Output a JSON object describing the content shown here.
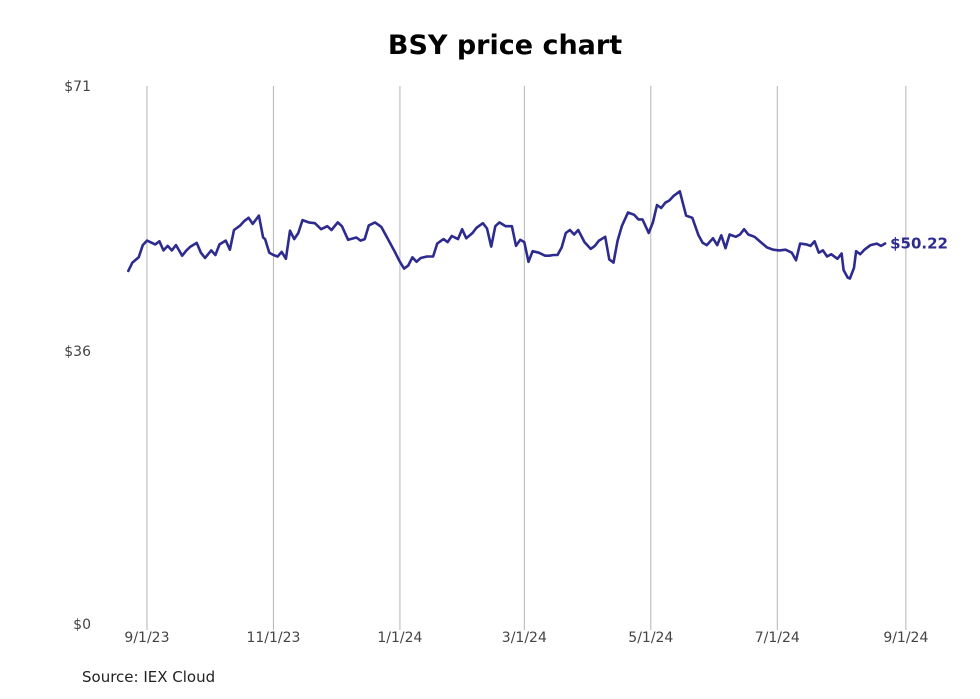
{
  "chart_data": {
    "type": "line",
    "title": "BSY price chart",
    "source": "Source: IEX Cloud",
    "ylim": [
      0,
      71
    ],
    "y_ticks": [
      {
        "value": 71,
        "label": "$71"
      },
      {
        "value": 36,
        "label": "$36"
      },
      {
        "value": 0,
        "label": "$0"
      }
    ],
    "x_range": [
      "2023-08-19",
      "2024-09-03"
    ],
    "x_ticks": [
      {
        "date": "2023-09-01",
        "label": "9/1/23"
      },
      {
        "date": "2023-11-01",
        "label": "11/1/23"
      },
      {
        "date": "2024-01-01",
        "label": "1/1/24"
      },
      {
        "date": "2024-03-01",
        "label": "3/1/24"
      },
      {
        "date": "2024-05-01",
        "label": "5/1/24"
      },
      {
        "date": "2024-07-01",
        "label": "7/1/24"
      },
      {
        "date": "2024-09-01",
        "label": "9/1/24"
      }
    ],
    "grid": "vertical",
    "series": [
      {
        "color": "#2e2b8f",
        "last_label": "$50.22",
        "points": [
          [
            "2023-08-23",
            46.6
          ],
          [
            "2023-08-25",
            47.7
          ],
          [
            "2023-08-28",
            48.4
          ],
          [
            "2023-08-30",
            50.0
          ],
          [
            "2023-09-01",
            50.6
          ],
          [
            "2023-09-05",
            50.1
          ],
          [
            "2023-09-07",
            50.5
          ],
          [
            "2023-09-09",
            49.3
          ],
          [
            "2023-09-11",
            49.9
          ],
          [
            "2023-09-13",
            49.3
          ],
          [
            "2023-09-15",
            50.0
          ],
          [
            "2023-09-18",
            48.6
          ],
          [
            "2023-09-20",
            49.3
          ],
          [
            "2023-09-22",
            49.8
          ],
          [
            "2023-09-25",
            50.3
          ],
          [
            "2023-09-27",
            49.0
          ],
          [
            "2023-09-29",
            48.3
          ],
          [
            "2023-10-02",
            49.3
          ],
          [
            "2023-10-04",
            48.7
          ],
          [
            "2023-10-06",
            50.1
          ],
          [
            "2023-10-09",
            50.6
          ],
          [
            "2023-10-11",
            49.4
          ],
          [
            "2023-10-13",
            52.0
          ],
          [
            "2023-10-16",
            52.6
          ],
          [
            "2023-10-18",
            53.2
          ],
          [
            "2023-10-20",
            53.6
          ],
          [
            "2023-10-22",
            52.8
          ],
          [
            "2023-10-25",
            53.9
          ],
          [
            "2023-10-27",
            51.0
          ],
          [
            "2023-10-28",
            50.8
          ],
          [
            "2023-10-30",
            49.0
          ],
          [
            "2023-11-01",
            48.7
          ],
          [
            "2023-11-03",
            48.5
          ],
          [
            "2023-11-05",
            49.1
          ],
          [
            "2023-11-07",
            48.2
          ],
          [
            "2023-11-09",
            51.9
          ],
          [
            "2023-11-11",
            50.8
          ],
          [
            "2023-11-13",
            51.6
          ],
          [
            "2023-11-15",
            53.3
          ],
          [
            "2023-11-18",
            53.0
          ],
          [
            "2023-11-21",
            52.9
          ],
          [
            "2023-11-24",
            52.1
          ],
          [
            "2023-11-27",
            52.5
          ],
          [
            "2023-11-29",
            52.0
          ],
          [
            "2023-12-02",
            53.0
          ],
          [
            "2023-12-04",
            52.5
          ],
          [
            "2023-12-07",
            50.7
          ],
          [
            "2023-12-11",
            51.0
          ],
          [
            "2023-12-13",
            50.6
          ],
          [
            "2023-12-15",
            50.8
          ],
          [
            "2023-12-17",
            52.6
          ],
          [
            "2023-12-20",
            53.0
          ],
          [
            "2023-12-23",
            52.4
          ],
          [
            "2023-12-26",
            50.9
          ],
          [
            "2023-12-29",
            49.4
          ],
          [
            "2024-01-01",
            47.8
          ],
          [
            "2024-01-03",
            46.9
          ],
          [
            "2024-01-05",
            47.3
          ],
          [
            "2024-01-07",
            48.4
          ],
          [
            "2024-01-09",
            47.8
          ],
          [
            "2024-01-11",
            48.3
          ],
          [
            "2024-01-14",
            48.5
          ],
          [
            "2024-01-17",
            48.5
          ],
          [
            "2024-01-19",
            50.2
          ],
          [
            "2024-01-22",
            50.8
          ],
          [
            "2024-01-24",
            50.4
          ],
          [
            "2024-01-26",
            51.2
          ],
          [
            "2024-01-29",
            50.8
          ],
          [
            "2024-01-31",
            52.1
          ],
          [
            "2024-02-02",
            50.9
          ],
          [
            "2024-02-05",
            51.6
          ],
          [
            "2024-02-07",
            52.3
          ],
          [
            "2024-02-10",
            52.9
          ],
          [
            "2024-02-12",
            52.2
          ],
          [
            "2024-02-14",
            49.8
          ],
          [
            "2024-02-16",
            52.5
          ],
          [
            "2024-02-18",
            53.0
          ],
          [
            "2024-02-21",
            52.5
          ],
          [
            "2024-02-24",
            52.5
          ],
          [
            "2024-02-26",
            49.9
          ],
          [
            "2024-02-28",
            50.7
          ],
          [
            "2024-03-01",
            50.4
          ],
          [
            "2024-03-03",
            47.8
          ],
          [
            "2024-03-05",
            49.2
          ],
          [
            "2024-03-08",
            49.0
          ],
          [
            "2024-03-11",
            48.6
          ],
          [
            "2024-03-13",
            48.6
          ],
          [
            "2024-03-15",
            48.7
          ],
          [
            "2024-03-17",
            48.7
          ],
          [
            "2024-03-19",
            49.7
          ],
          [
            "2024-03-21",
            51.6
          ],
          [
            "2024-03-23",
            52.0
          ],
          [
            "2024-03-25",
            51.4
          ],
          [
            "2024-03-27",
            52.0
          ],
          [
            "2024-03-30",
            50.4
          ],
          [
            "2024-04-02",
            49.5
          ],
          [
            "2024-04-04",
            49.9
          ],
          [
            "2024-04-06",
            50.6
          ],
          [
            "2024-04-09",
            51.1
          ],
          [
            "2024-04-11",
            48.1
          ],
          [
            "2024-04-13",
            47.7
          ],
          [
            "2024-04-15",
            50.6
          ],
          [
            "2024-04-17",
            52.5
          ],
          [
            "2024-04-20",
            54.3
          ],
          [
            "2024-04-23",
            54.0
          ],
          [
            "2024-04-25",
            53.4
          ],
          [
            "2024-04-27",
            53.4
          ],
          [
            "2024-04-30",
            51.6
          ],
          [
            "2024-05-02",
            53.0
          ],
          [
            "2024-05-04",
            55.3
          ],
          [
            "2024-05-06",
            54.9
          ],
          [
            "2024-05-08",
            55.6
          ],
          [
            "2024-05-10",
            55.9
          ],
          [
            "2024-05-12",
            56.5
          ],
          [
            "2024-05-15",
            57.1
          ],
          [
            "2024-05-18",
            53.9
          ],
          [
            "2024-05-21",
            53.6
          ],
          [
            "2024-05-24",
            51.3
          ],
          [
            "2024-05-26",
            50.3
          ],
          [
            "2024-05-28",
            50.0
          ],
          [
            "2024-05-31",
            50.9
          ],
          [
            "2024-06-02",
            50.0
          ],
          [
            "2024-06-04",
            51.3
          ],
          [
            "2024-06-06",
            49.6
          ],
          [
            "2024-06-08",
            51.4
          ],
          [
            "2024-06-11",
            51.1
          ],
          [
            "2024-06-13",
            51.4
          ],
          [
            "2024-06-15",
            52.1
          ],
          [
            "2024-06-17",
            51.4
          ],
          [
            "2024-06-20",
            51.1
          ],
          [
            "2024-06-23",
            50.4
          ],
          [
            "2024-06-26",
            49.7
          ],
          [
            "2024-06-29",
            49.4
          ],
          [
            "2024-07-02",
            49.3
          ],
          [
            "2024-07-05",
            49.4
          ],
          [
            "2024-07-08",
            49.0
          ],
          [
            "2024-07-10",
            48.0
          ],
          [
            "2024-07-12",
            50.2
          ],
          [
            "2024-07-15",
            50.1
          ],
          [
            "2024-07-17",
            49.9
          ],
          [
            "2024-07-19",
            50.5
          ],
          [
            "2024-07-21",
            49.0
          ],
          [
            "2024-07-23",
            49.3
          ],
          [
            "2024-07-25",
            48.5
          ],
          [
            "2024-07-27",
            48.8
          ],
          [
            "2024-07-30",
            48.2
          ],
          [
            "2024-08-01",
            48.9
          ],
          [
            "2024-08-02",
            46.7
          ],
          [
            "2024-08-04",
            45.7
          ],
          [
            "2024-08-05",
            45.6
          ],
          [
            "2024-08-07",
            47.0
          ],
          [
            "2024-08-08",
            49.2
          ],
          [
            "2024-08-10",
            48.8
          ],
          [
            "2024-08-12",
            49.4
          ],
          [
            "2024-08-15",
            50.0
          ],
          [
            "2024-08-18",
            50.2
          ],
          [
            "2024-08-20",
            49.9
          ],
          [
            "2024-08-22",
            50.22
          ]
        ]
      }
    ]
  }
}
